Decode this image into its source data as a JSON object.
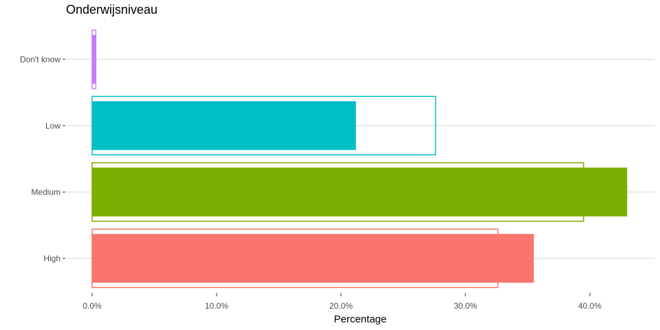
{
  "chart_data": {
    "type": "bar",
    "orientation": "horizontal",
    "title": "Onderwijsniveau",
    "xlabel": "Percentage",
    "ylabel": "",
    "xlim": [
      0,
      45
    ],
    "x_ticks": [
      0,
      10,
      20,
      30,
      40
    ],
    "x_tick_labels": [
      "0.0%",
      "10.0%",
      "20.0%",
      "30.0%",
      "40.0%"
    ],
    "categories": [
      "Don't know",
      "Low",
      "Medium",
      "High"
    ],
    "series": [
      {
        "style": "filled",
        "values": [
          0.3,
          21.2,
          43.0,
          35.5
        ]
      },
      {
        "style": "outline",
        "values": [
          0.3,
          27.6,
          39.5,
          32.6
        ]
      }
    ],
    "category_colors": [
      "#C77CFF",
      "#00BFC4",
      "#7CAE00",
      "#F8766D"
    ],
    "grid": true,
    "legend": "none"
  }
}
